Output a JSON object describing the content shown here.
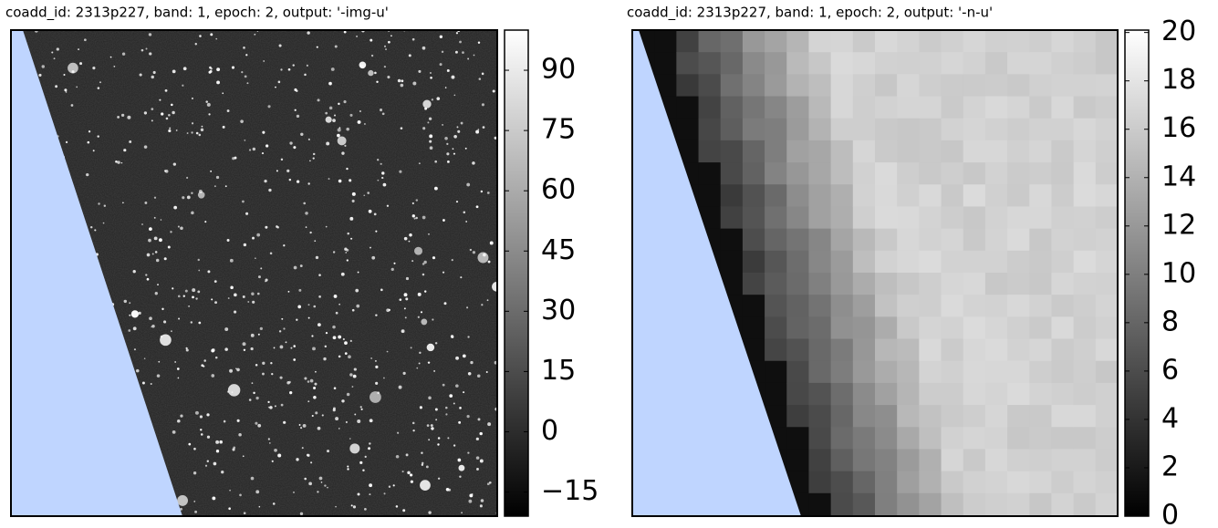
{
  "chart_data": [
    {
      "type": "image",
      "title": "coadd_id: 2313p227, band: 1, epoch: 2, output: '-img-u'",
      "ylim": [
        -21,
        100
      ],
      "yticks": [
        {
          "value": -15,
          "label": "−15"
        },
        0,
        15,
        30,
        45,
        60,
        75,
        90
      ],
      "masked_color": "#bfd5ff"
    },
    {
      "type": "image",
      "title": "coadd_id: 2313p227, band: 1, epoch: 2, output: '-n-u'",
      "ylim": [
        0,
        20.1
      ],
      "yticks": [
        0,
        2,
        4,
        6,
        8,
        10,
        12,
        14,
        16,
        18,
        20
      ],
      "masked_color": "#bfd5ff"
    }
  ]
}
